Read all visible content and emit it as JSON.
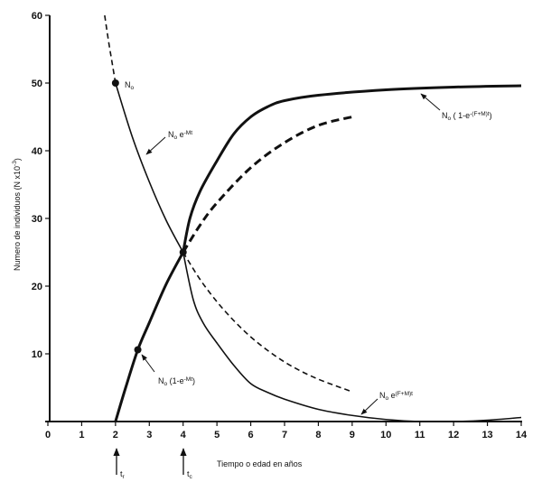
{
  "chart_data": {
    "type": "line",
    "xlabel": "Tiempo o edad en años",
    "ylabel": "Numero de individuos (N x10",
    "ylabel_sup": "-3",
    "ylabel_end": ")",
    "xlim": [
      0,
      14
    ],
    "ylim": [
      0,
      60
    ],
    "xticks": [
      "0",
      "1",
      "2",
      "3",
      "4",
      "5",
      "6",
      "7",
      "8",
      "9",
      "10",
      "11",
      "12",
      "13",
      "14"
    ],
    "yticks": [
      "10",
      "20",
      "30",
      "40",
      "50",
      "60"
    ],
    "grid": false,
    "markers": {
      "tr": {
        "base": "t",
        "sub": "r",
        "x": 2
      },
      "tc": {
        "base": "t",
        "sub": "c",
        "x": 4
      }
    },
    "points": [
      {
        "x": 2,
        "y": 50,
        "label": "N",
        "label_sub": "o"
      },
      {
        "x": 4,
        "y": 25
      },
      {
        "x": 2.66,
        "y": 10.6
      }
    ],
    "series": [
      {
        "id": "mort-pre",
        "style": "dashed",
        "weight": "normal",
        "points": [
          [
            1.68,
            60
          ],
          [
            1.8,
            56
          ],
          [
            1.9,
            53
          ],
          [
            2,
            50
          ]
        ]
      },
      {
        "id": "mort-natural",
        "style": "solid",
        "weight": "normal",
        "label": "N",
        "label_sub": "o",
        "label_mid": " e",
        "label_sup": "-Mt",
        "points": [
          [
            2,
            50
          ],
          [
            2.5,
            42
          ],
          [
            3,
            35.4
          ],
          [
            3.5,
            29.7
          ],
          [
            4,
            25
          ]
        ]
      },
      {
        "id": "mort-natural-cont",
        "style": "dashed",
        "weight": "normal",
        "points": [
          [
            4,
            25
          ],
          [
            4.5,
            21
          ],
          [
            5,
            17.7
          ],
          [
            5.5,
            14.9
          ],
          [
            6,
            12.5
          ],
          [
            6.5,
            10.5
          ],
          [
            7,
            8.8
          ],
          [
            7.5,
            7.4
          ],
          [
            8,
            6.25
          ],
          [
            8.5,
            5.3
          ],
          [
            9,
            4.4
          ]
        ]
      },
      {
        "id": "survivors-fished",
        "style": "solid",
        "weight": "normal",
        "label": "N",
        "label_sub": "o",
        "label_mid": " e",
        "label_sup": "(F+M)t",
        "points": [
          [
            4,
            25
          ],
          [
            4.3,
            18
          ],
          [
            4.6,
            14.5
          ],
          [
            5,
            11.6
          ],
          [
            5.5,
            8.3
          ],
          [
            6,
            5.6
          ],
          [
            6.5,
            4.3
          ],
          [
            7,
            3.3
          ],
          [
            8,
            1.8
          ],
          [
            9,
            0.9
          ],
          [
            10,
            0.3
          ],
          [
            11,
            0
          ],
          [
            12,
            0
          ],
          [
            13,
            0.2
          ],
          [
            14,
            0.6
          ]
        ]
      },
      {
        "id": "deaths-natural",
        "style": "solid",
        "weight": "bold",
        "label": "N",
        "label_sub": "o",
        "label_mid": " (1-e",
        "label_sup": "-Mt",
        "label_end": ")",
        "points": [
          [
            2,
            0
          ],
          [
            2.3,
            5
          ],
          [
            2.66,
            10.6
          ],
          [
            3,
            14.6
          ],
          [
            3.5,
            20.3
          ],
          [
            4,
            25
          ]
        ]
      },
      {
        "id": "deaths-natural-cont",
        "style": "dashed",
        "weight": "bold",
        "points": [
          [
            4,
            25
          ],
          [
            4.5,
            29
          ],
          [
            5,
            32.3
          ],
          [
            6,
            37.5
          ],
          [
            7,
            41.2
          ],
          [
            8,
            43.75
          ],
          [
            9,
            45
          ]
        ]
      },
      {
        "id": "deaths-total",
        "style": "solid",
        "weight": "bold",
        "label": "N",
        "label_sub": "o",
        "label_mid": " ( 1-e",
        "label_sup": "-(F+M)t",
        "label_end": ")",
        "points": [
          [
            4,
            25
          ],
          [
            4.2,
            30
          ],
          [
            4.5,
            34
          ],
          [
            5,
            38.5
          ],
          [
            5.5,
            42.5
          ],
          [
            6,
            45
          ],
          [
            6.5,
            46.5
          ],
          [
            7,
            47.4
          ],
          [
            8,
            48.2
          ],
          [
            10,
            49
          ],
          [
            12,
            49.4
          ],
          [
            14,
            49.6
          ]
        ]
      }
    ]
  }
}
